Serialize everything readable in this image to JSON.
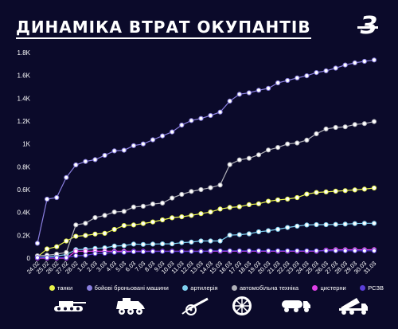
{
  "header": {
    "title": "ДИНАМІКА ВТРАТ ОКУПАНТІВ",
    "logo": "З"
  },
  "chart_data": {
    "type": "line",
    "title": "ДИНАМІКА ВТРАТ ОКУПАНТІВ",
    "xlabel": "",
    "ylabel": "",
    "ylim": [
      0,
      1800
    ],
    "yticks": [
      0,
      200,
      400,
      600,
      800,
      1000,
      1200,
      1400,
      1600,
      1800
    ],
    "ytick_labels": [
      "0",
      "0.2K",
      "0.4K",
      "0.6K",
      "0.8K",
      "1K",
      "1.2K",
      "1.4K",
      "1.6K",
      "1.8K"
    ],
    "grid": false,
    "legend_position": "bottom",
    "x": [
      "24.02",
      "25.02",
      "26.02",
      "27.02",
      "28.02",
      "1.03",
      "2.03",
      "3.03",
      "4.03",
      "5.03",
      "6.03",
      "7.03",
      "8.03",
      "9.03",
      "10.03",
      "11.03",
      "12.03",
      "13.03",
      "14.03",
      "15.03",
      "16.03",
      "17.03",
      "18.03",
      "19.03",
      "20.03",
      "21.03",
      "22.03",
      "23.03",
      "24.03",
      "25.03",
      "26.03",
      "27.03",
      "28.03",
      "29.03",
      "30.03",
      "31.03"
    ],
    "series": [
      {
        "name": "танки",
        "color": "#e8f24a",
        "values": [
          10,
          80,
          100,
          150,
          191,
          198,
          211,
          217,
          251,
          285,
          290,
          303,
          317,
          335,
          353,
          362,
          374,
          389,
          404,
          430,
          444,
          450,
          468,
          476,
          498,
          509,
          517,
          530,
          561,
          575,
          580,
          586,
          591,
          597,
          604,
          614
        ]
      },
      {
        "name": "бойові броньовані машини",
        "color": "#8a7fe0",
        "values": [
          130,
          516,
          530,
          706,
          816,
          846,
          862,
          900,
          939,
          945,
          985,
          1000,
          1036,
          1070,
          1105,
          1165,
          1205,
          1223,
          1249,
          1279,
          1375,
          1435,
          1448,
          1470,
          1487,
          1535,
          1556,
          1578,
          1597,
          1625,
          1640,
          1664,
          1691,
          1710,
          1723,
          1735
        ]
      },
      {
        "name": "артилерія",
        "color": "#7fd0f0",
        "values": [
          5,
          12,
          20,
          30,
          74,
          77,
          85,
          90,
          105,
          109,
          123,
          120,
          123,
          125,
          125,
          135,
          140,
          150,
          150,
          150,
          201,
          205,
          213,
          230,
          240,
          252,
          268,
          280,
          290,
          293,
          293,
          295,
          298,
          302,
          305,
          305
        ]
      },
      {
        "name": "автомобільна техніка",
        "color": "#b0b0b8",
        "values": [
          20,
          25,
          35,
          50,
          291,
          305,
          355,
          374,
          404,
          409,
          447,
          454,
          474,
          482,
          526,
          558,
          584,
          600,
          617,
          640,
          819,
          860,
          874,
          905,
          947,
          969,
          1000,
          1008,
          1033,
          1089,
          1131,
          1144,
          1150,
          1170,
          1178,
          1196
        ]
      },
      {
        "name": "цистерни",
        "color": "#e040e8",
        "values": [
          0,
          0,
          0,
          0,
          60,
          60,
          60,
          60,
          60,
          60,
          60,
          60,
          60,
          60,
          60,
          60,
          60,
          60,
          60,
          60,
          60,
          60,
          60,
          60,
          60,
          60,
          60,
          60,
          60,
          60,
          70,
          73,
          73,
          73,
          73,
          74
        ]
      },
      {
        "name": "РСЗВ",
        "color": "#5b3fd8",
        "values": [
          4,
          4,
          4,
          4,
          21,
          24,
          40,
          42,
          50,
          50,
          56,
          56,
          58,
          58,
          58,
          58,
          58,
          58,
          64,
          64,
          64,
          64,
          64,
          64,
          64,
          64,
          64,
          64,
          64,
          64,
          64,
          64,
          64,
          64,
          64,
          64
        ]
      }
    ]
  },
  "legend": [
    {
      "label": "танки",
      "color": "#e8f24a",
      "icon": "tank-icon"
    },
    {
      "label": "бойові броньовані машини",
      "color": "#8a7fe0",
      "icon": "armored-vehicle-icon"
    },
    {
      "label": "артилерія",
      "color": "#7fd0f0",
      "icon": "artillery-icon"
    },
    {
      "label": "автомобільна техніка",
      "color": "#b0b0b8",
      "icon": "wheel-icon"
    },
    {
      "label": "цистерни",
      "color": "#e040e8",
      "icon": "tanker-truck-icon"
    },
    {
      "label": "РСЗВ",
      "color": "#5b3fd8",
      "icon": "mlrs-icon"
    }
  ]
}
